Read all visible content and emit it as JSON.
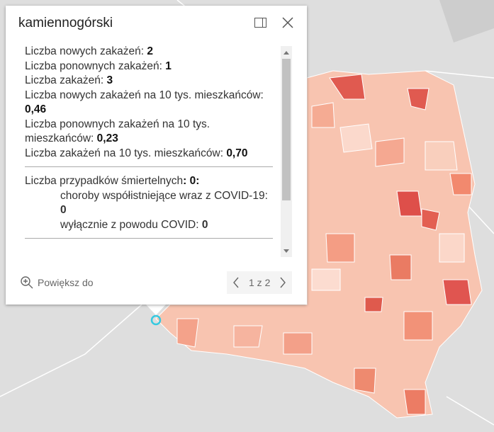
{
  "popup": {
    "title": "kamiennogórski",
    "fields": [
      {
        "label": "Liczba nowych zakażeń:",
        "value": "2"
      },
      {
        "label": "Liczba ponownych zakażeń:",
        "value": "1"
      },
      {
        "label": "Liczba zakażeń:",
        "value": "3"
      },
      {
        "label": "Liczba nowych zakażeń na 10 tys. mieszkańców:",
        "value": "0,46"
      },
      {
        "label": "Liczba ponownych zakażeń na 10 tys. mieszkańców:",
        "value": "0,23"
      },
      {
        "label": "Liczba zakażeń na 10 tys. mieszkańców:",
        "value": "0,70"
      }
    ],
    "deaths": {
      "label": "Liczba przypadków śmiertelnych",
      "value": ": 0:",
      "items": [
        {
          "label": "choroby współistniejące wraz z COVID-19:",
          "value": "0"
        },
        {
          "label": "wyłącznie z powodu COVID:",
          "value": "0"
        }
      ]
    },
    "zoom": "Powiększ do",
    "pager": "1 z 2"
  }
}
